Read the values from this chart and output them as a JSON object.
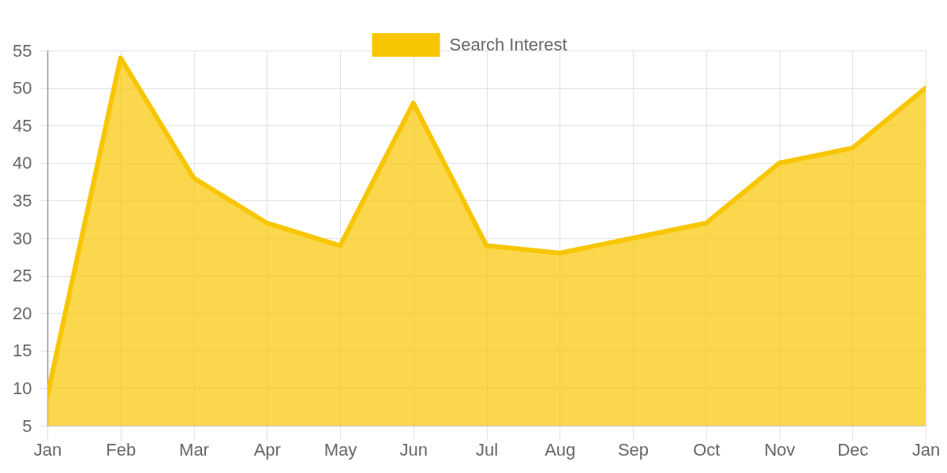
{
  "chart_data": {
    "type": "area",
    "categories": [
      "Jan",
      "Feb",
      "Mar",
      "Apr",
      "May",
      "Jun",
      "Jul",
      "Aug",
      "Sep",
      "Oct",
      "Nov",
      "Dec",
      "Jan"
    ],
    "series": [
      {
        "name": "Search Interest",
        "color": "#f8c600",
        "values": [
          9,
          54,
          38,
          32,
          29,
          48,
          29,
          28,
          30,
          32,
          40,
          42,
          50
        ]
      }
    ],
    "ylim": [
      5,
      55
    ],
    "yticks": [
      5,
      10,
      15,
      20,
      25,
      30,
      35,
      40,
      45,
      50,
      55
    ],
    "grid": true,
    "legend": "top"
  }
}
